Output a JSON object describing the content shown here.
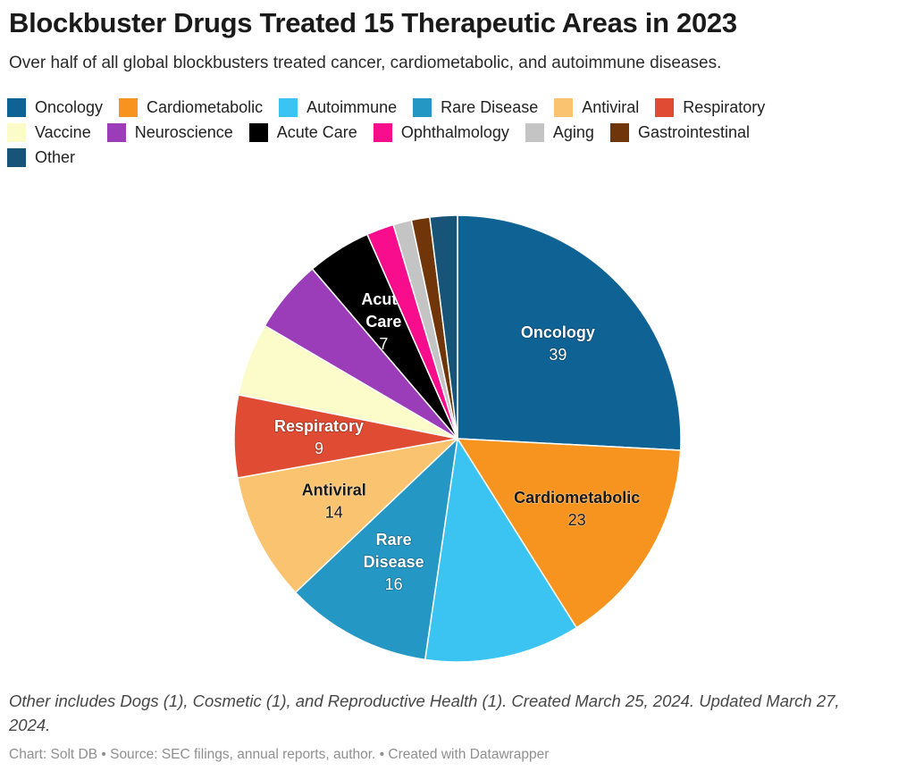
{
  "header": {
    "title": "Blockbuster Drugs Treated 15 Therapeutic Areas in 2023",
    "subtitle": "Over half of all global blockbusters treated cancer, cardiometabolic, and autoimmune diseases."
  },
  "chart_data": {
    "type": "pie",
    "title": "Blockbuster Drugs Treated 15 Therapeutic Areas in 2023",
    "start_angle_deg": 0,
    "direction": "clockwise",
    "total": 151,
    "legend_position": "top",
    "slices": [
      {
        "label": "Oncology",
        "value": 39,
        "color": "#0e6294",
        "value_shown": true,
        "label_lines": [
          "Oncology"
        ],
        "label_color": "#ffffff"
      },
      {
        "label": "Cardiometabolic",
        "value": 23,
        "color": "#f6941f",
        "value_shown": true,
        "label_lines": [
          "Cardiometabolic"
        ],
        "label_color": "#1a1a1a"
      },
      {
        "label": "Autoimmune",
        "value": 17,
        "color": "#3bc4f2",
        "value_shown": false,
        "estimated": true
      },
      {
        "label": "Rare Disease",
        "value": 16,
        "color": "#2497c4",
        "value_shown": true,
        "label_lines": [
          "Rare",
          "Disease"
        ],
        "label_color": "#ffffff"
      },
      {
        "label": "Antiviral",
        "value": 14,
        "color": "#fac36f",
        "value_shown": true,
        "label_lines": [
          "Antiviral"
        ],
        "label_color": "#1a1a1a"
      },
      {
        "label": "Respiratory",
        "value": 9,
        "color": "#df4b33",
        "value_shown": true,
        "label_lines": [
          "Respiratory"
        ],
        "label_color": "#ffffff"
      },
      {
        "label": "Vaccine",
        "value": 8,
        "color": "#fcfcca",
        "value_shown": false,
        "estimated": true
      },
      {
        "label": "Neuroscience",
        "value": 8,
        "color": "#9b3cb8",
        "value_shown": false,
        "estimated": true
      },
      {
        "label": "Acute Care",
        "value": 7,
        "color": "#000000",
        "value_shown": true,
        "label_lines": [
          "Acute",
          "Care"
        ],
        "label_color": "#ffffff"
      },
      {
        "label": "Ophthalmology",
        "value": 3,
        "color": "#f80d8c",
        "value_shown": false,
        "estimated": true
      },
      {
        "label": "Aging",
        "value": 2,
        "color": "#c4c4c4",
        "value_shown": false,
        "estimated": true
      },
      {
        "label": "Gastrointestinal",
        "value": 2,
        "color": "#703508",
        "value_shown": false,
        "estimated": true
      },
      {
        "label": "Other",
        "value": 3,
        "color": "#175478",
        "value_shown": false
      }
    ]
  },
  "footer": {
    "note": "Other includes Dogs (1), Cosmetic (1), and Reproductive Health (1). Created March 25, 2024. Updated March 27, 2024.",
    "attribution": "Chart: Solt DB • Source: SEC filings, annual reports, author. • Created with Datawrapper"
  }
}
